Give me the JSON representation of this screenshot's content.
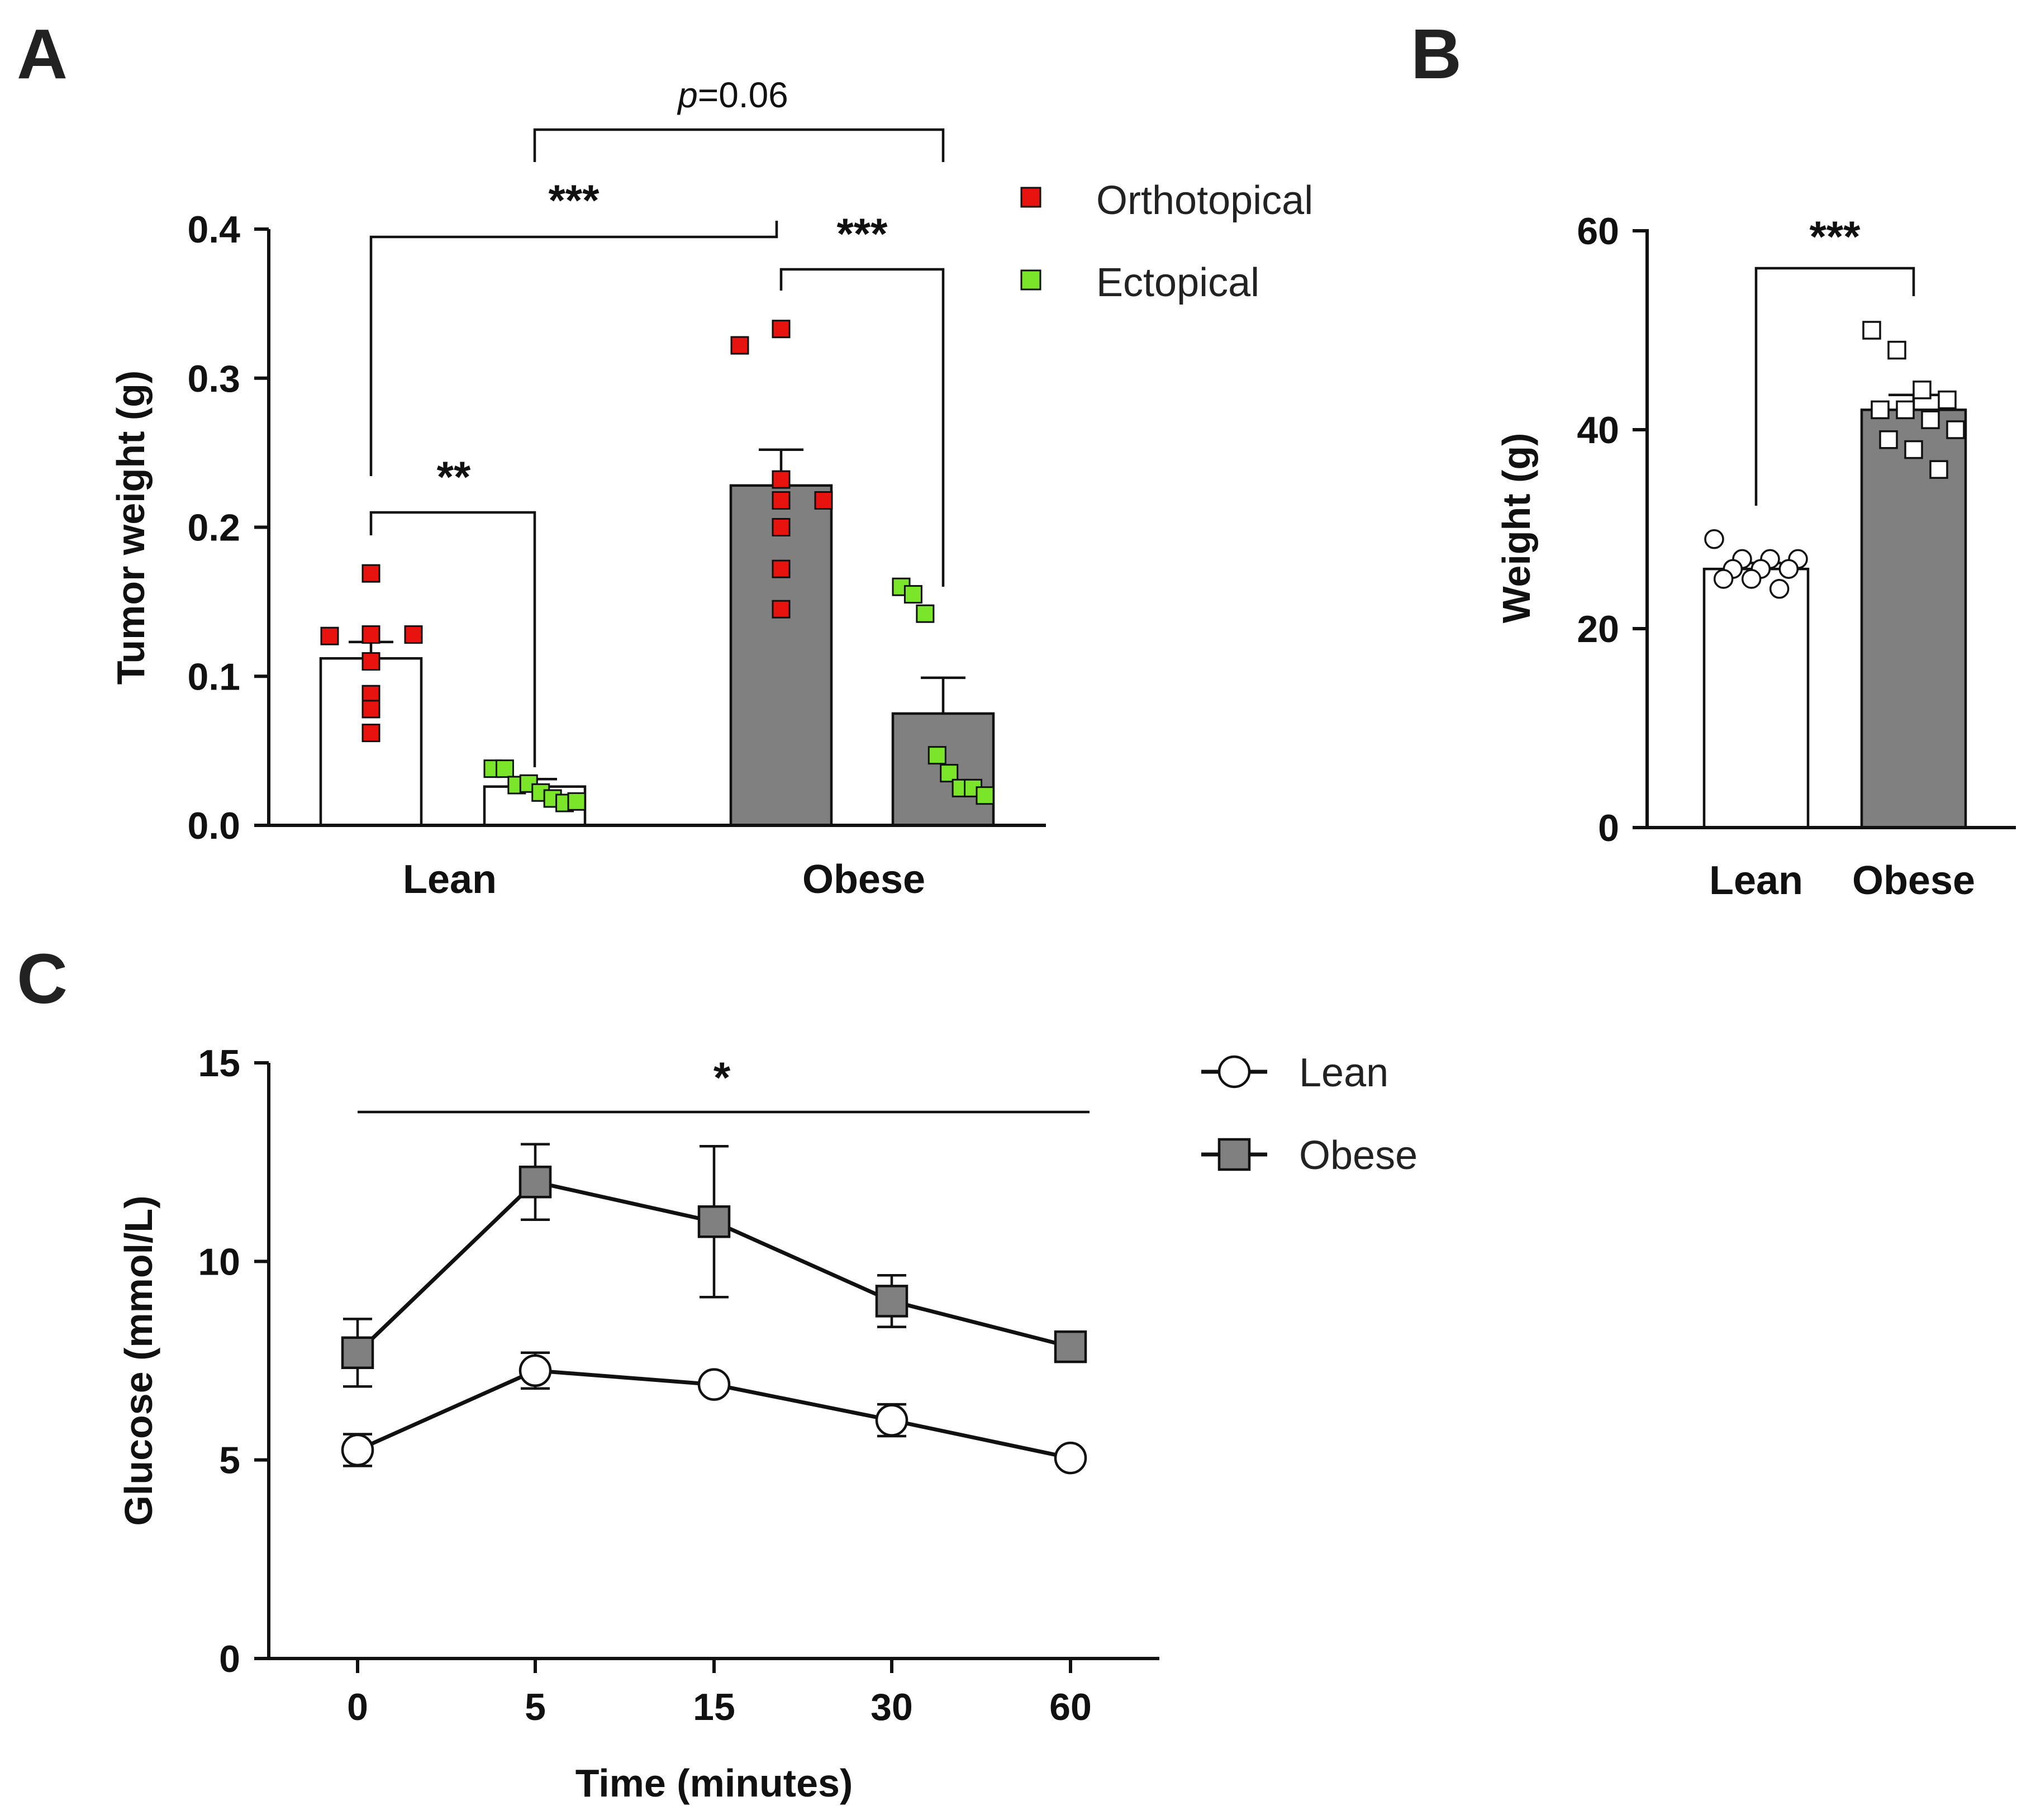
{
  "colors": {
    "orthotopical": "#e8120f",
    "ectopical": "#7be52a",
    "obese_bar": "#808080",
    "lean_bar": "#ffffff",
    "ink": "#111111"
  },
  "panels": {
    "a": {
      "letter": "A"
    },
    "b": {
      "letter": "B"
    },
    "c": {
      "letter": "C"
    }
  },
  "chart_data": [
    {
      "panel": "A",
      "type": "bar",
      "ylabel": "Tumor weight (g)",
      "ylim": [
        0,
        0.4
      ],
      "yticks": [
        "0.0",
        "0.1",
        "0.2",
        "0.3",
        "0.4"
      ],
      "groups": [
        "Lean",
        "Obese"
      ],
      "legend": [
        "Orthotopical",
        "Ectopical"
      ],
      "bars": [
        {
          "group": "Lean",
          "series": "Orthotopical",
          "mean": 0.112,
          "sem": 0.011,
          "points": [
            0.169,
            0.127,
            0.128,
            0.128,
            0.11,
            0.088,
            0.078,
            0.062
          ]
        },
        {
          "group": "Lean",
          "series": "Ectopical",
          "mean": 0.026,
          "sem": 0.005,
          "points": [
            0.038,
            0.038,
            0.027,
            0.028,
            0.022,
            0.018,
            0.015,
            0.016
          ]
        },
        {
          "group": "Obese",
          "series": "Orthotopical",
          "mean": 0.228,
          "sem": 0.024,
          "points": [
            0.333,
            0.322,
            0.232,
            0.218,
            0.218,
            0.2,
            0.172,
            0.145
          ]
        },
        {
          "group": "Obese",
          "series": "Ectopical",
          "mean": 0.075,
          "sem": 0.024,
          "points": [
            0.16,
            0.155,
            0.142,
            0.047,
            0.035,
            0.025,
            0.025,
            0.02
          ]
        }
      ],
      "annotations": {
        "p_prefix": "p",
        "p_value": "=0.06",
        "lean_ortho_vs_obese_ortho": "***",
        "obese_ortho_vs_obese_ecto": "***",
        "lean_ortho_vs_lean_ecto": "**"
      }
    },
    {
      "panel": "B",
      "type": "bar",
      "ylabel": "Weight (g)",
      "ylim": [
        0,
        60
      ],
      "yticks": [
        "0",
        "20",
        "40",
        "60"
      ],
      "categories": [
        "Lean",
        "Obese"
      ],
      "values": [
        26,
        42
      ],
      "sem": [
        0.6,
        1.5
      ],
      "points": {
        "Lean": [
          29,
          27,
          27,
          27,
          26,
          26,
          26,
          25,
          25,
          24
        ],
        "Obese": [
          50,
          48,
          44,
          43,
          42,
          42,
          41,
          40,
          39,
          38,
          36
        ]
      },
      "annotation": "***"
    },
    {
      "panel": "C",
      "type": "line",
      "xlabel": "Time (minutes)",
      "ylabel": "Glucose (mmol/L)",
      "ylim": [
        0,
        15
      ],
      "yticks": [
        "0",
        "5",
        "10",
        "15"
      ],
      "x": [
        "0",
        "5",
        "15",
        "30",
        "60"
      ],
      "series": [
        {
          "name": "Lean",
          "values": [
            5.25,
            7.25,
            6.9,
            6.0,
            5.05
          ],
          "sem": [
            0.4,
            0.45,
            0.1,
            0.4,
            0.1
          ]
        },
        {
          "name": "Obese",
          "values": [
            7.7,
            12.0,
            11.0,
            9.0,
            7.85
          ],
          "sem": [
            0.85,
            0.95,
            1.9,
            0.65,
            0.1
          ]
        }
      ],
      "annotation": "*"
    }
  ]
}
